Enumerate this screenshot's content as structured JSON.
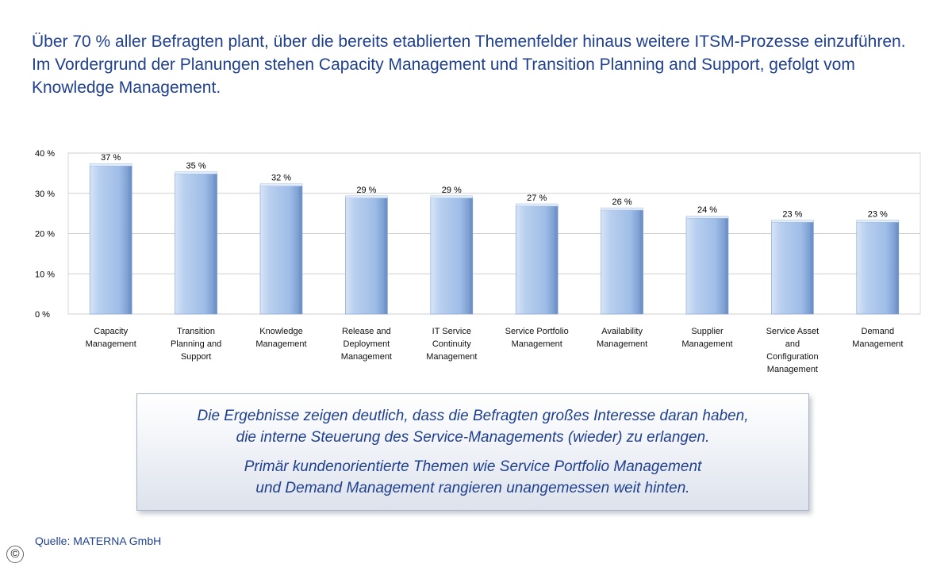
{
  "intro": {
    "text": "Über 70 % aller Befragten plant, über die bereits etablierten Themenfelder hinaus weitere ITSM-Prozesse einzuführen. Im Vordergrund der Planungen stehen Capacity Management und Transition Planning and Support, gefolgt vom Knowledge Management."
  },
  "chart_data": {
    "type": "bar",
    "categories": [
      "Capacity Management",
      "Transition Planning and Support",
      "Knowledge Management",
      "Release and Deployment Management",
      "IT Service Continuity Management",
      "Service Portfolio Management",
      "Availability Management",
      "Supplier Management",
      "Service Asset and Configuration Management",
      "Demand Management"
    ],
    "category_label_lines": [
      [
        "Capacity",
        "Management"
      ],
      [
        "Transition",
        "Planning and",
        "Support"
      ],
      [
        "Knowledge",
        "Management"
      ],
      [
        "Release and",
        "Deployment",
        "Management"
      ],
      [
        "IT Service",
        "Continuity",
        "Management"
      ],
      [
        "Service Portfolio",
        "Management"
      ],
      [
        "Availability",
        "Management"
      ],
      [
        "Supplier",
        "Management"
      ],
      [
        "Service Asset",
        "and",
        "Configuration",
        "Management"
      ],
      [
        "Demand",
        "Management"
      ]
    ],
    "values": [
      37,
      35,
      32,
      29,
      29,
      27,
      26,
      24,
      23,
      23
    ],
    "value_labels": [
      "37 %",
      "35 %",
      "32 %",
      "29 %",
      "29 %",
      "27 %",
      "26 %",
      "24 %",
      "23 %",
      "23 %"
    ],
    "y_ticks": [
      0,
      10,
      20,
      30,
      40
    ],
    "y_tick_labels": [
      "0 %",
      "10 %",
      "20 %",
      "30 %",
      "40 %"
    ],
    "ylim": [
      0,
      40
    ],
    "grid": true,
    "bar_color": "#a9c4e8"
  },
  "callout": {
    "line1": "Die Ergebnisse zeigen deutlich, dass die Befragten großes Interesse daran haben,",
    "line2": "die interne Steuerung des Service-Managements (wieder) zu erlangen.",
    "line3": "Primär kundenorientierte Themen wie Service Portfolio Management",
    "line4": "und Demand Management rangieren unangemessen weit hinten."
  },
  "source": {
    "text": "Quelle: MATERNA GmbH"
  },
  "copyright": {
    "symbol": "©"
  }
}
